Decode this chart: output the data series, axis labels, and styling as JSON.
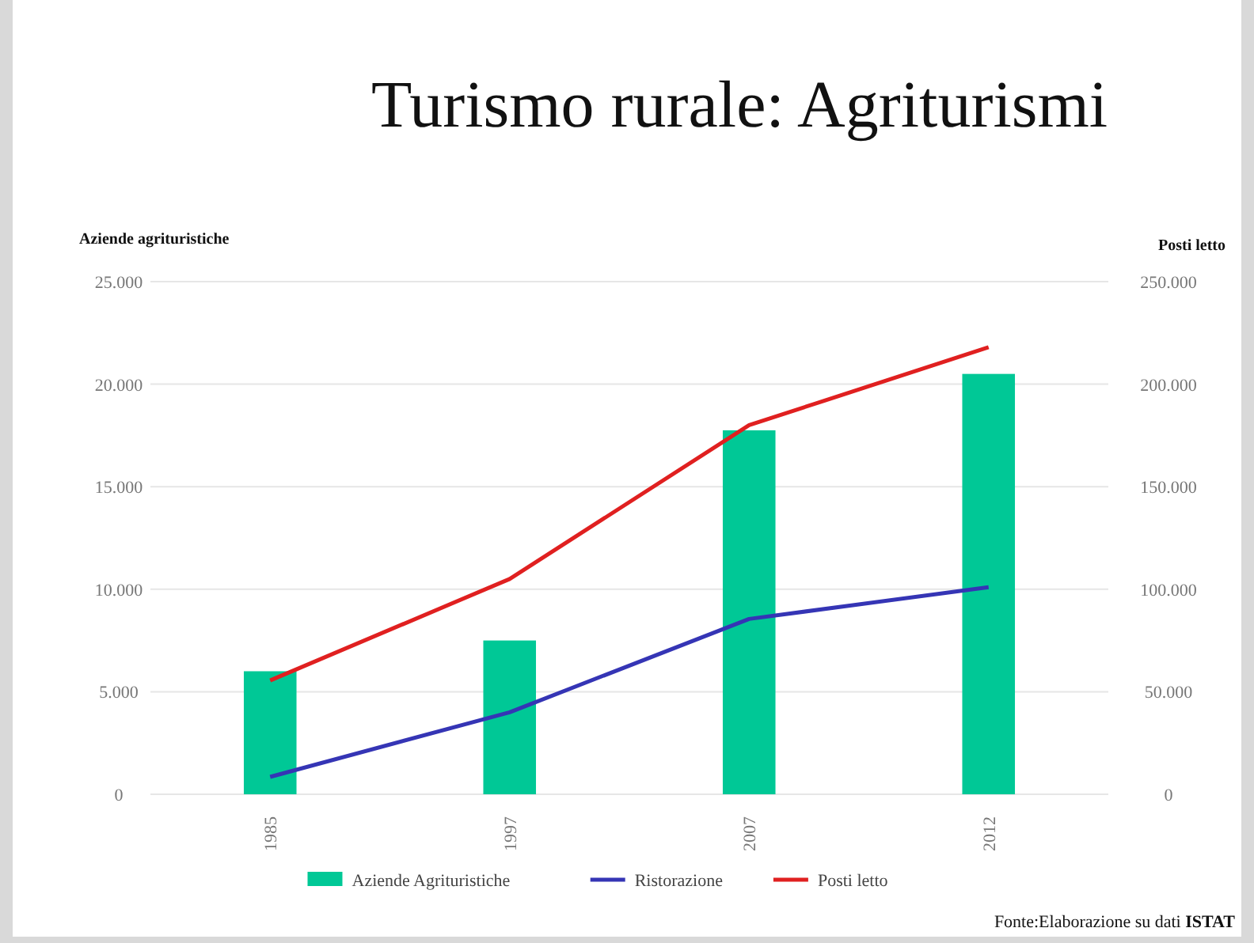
{
  "chart_data": {
    "type": "bar",
    "title": "Turismo rurale: Agriturismi",
    "ylabel": "Aziende agrituristiche",
    "y2label": "Posti letto",
    "categories": [
      "1985",
      "1997",
      "2007",
      "2012"
    ],
    "series": [
      {
        "name": "Aziende Agrituristiche",
        "color": "#00c896",
        "values": [
          6000,
          7500,
          17750,
          20500
        ]
      },
      {
        "name": "Ristorazione",
        "type": "line",
        "color": "#3535b5",
        "values": [
          850,
          4000,
          8550,
          10100
        ]
      },
      {
        "name": "Posti letto",
        "type": "line",
        "color": "#e02020",
        "axis": "y2",
        "values": [
          55500,
          105000,
          180000,
          218000
        ]
      }
    ],
    "ylim": [
      0,
      25000
    ],
    "yticks": [
      {
        "value": 0,
        "label": "0"
      },
      {
        "value": 5000,
        "label": "5.000"
      },
      {
        "value": 10000,
        "label": "10.000"
      },
      {
        "value": 15000,
        "label": "15.000"
      },
      {
        "value": 20000,
        "label": "20.000"
      },
      {
        "value": 25000,
        "label": "25.000"
      }
    ],
    "y2lim": [
      0,
      250000
    ],
    "y2ticks": [
      {
        "value": 0,
        "label": "0"
      },
      {
        "value": 50000,
        "label": "50.000"
      },
      {
        "value": 100000,
        "label": "100.000"
      },
      {
        "value": 150000,
        "label": "150.000"
      },
      {
        "value": 200000,
        "label": "200.000"
      },
      {
        "value": 250000,
        "label": "250.000"
      }
    ],
    "grid": "y",
    "legend": "bottom",
    "marker": "none",
    "line_style": "solid",
    "annotations": [
      "Fonte:Elaborazione su dati ISTAT"
    ]
  }
}
